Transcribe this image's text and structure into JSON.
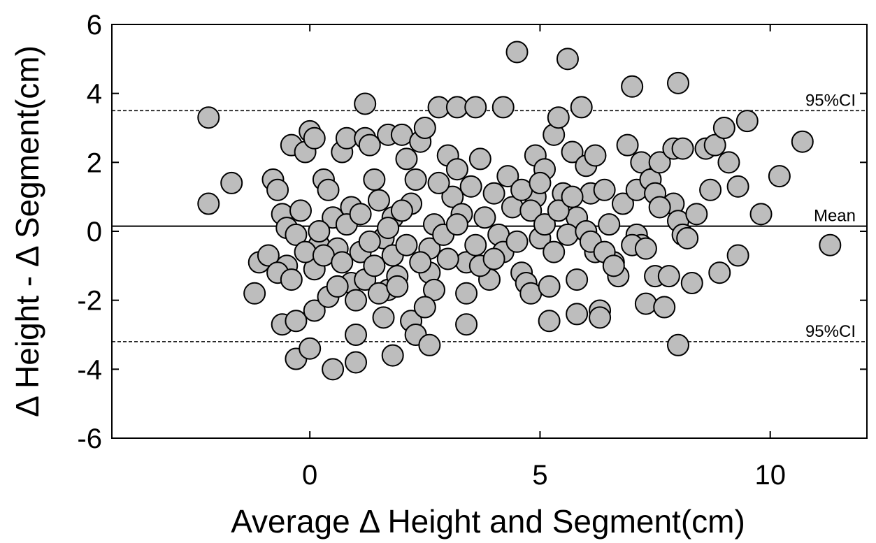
{
  "chart_data": {
    "type": "scatter",
    "xlabel": "Average Δ Height and Segment(cm)",
    "ylabel": "Δ Height - Δ Segment(cm)",
    "xlim": [
      -4.3,
      12.1
    ],
    "ylim": [
      -6,
      6
    ],
    "x_ticks": [
      0,
      5,
      10
    ],
    "y_ticks": [
      -6,
      -4,
      -2,
      0,
      2,
      4,
      6
    ],
    "grid": false,
    "reference_lines": [
      {
        "label": "95%CI",
        "y": 3.5,
        "style": "dashed"
      },
      {
        "label": "Mean",
        "y": 0.15,
        "style": "solid"
      },
      {
        "label": "95%CI",
        "y": -3.2,
        "style": "dashed"
      }
    ],
    "points": [
      [
        -2.2,
        3.3
      ],
      [
        -2.2,
        0.8
      ],
      [
        -1.7,
        1.4
      ],
      [
        -1.1,
        -0.9
      ],
      [
        -1.2,
        -1.8
      ],
      [
        -0.8,
        1.5
      ],
      [
        -0.7,
        1.2
      ],
      [
        -0.6,
        0.5
      ],
      [
        -0.5,
        0.1
      ],
      [
        -0.5,
        -1.0
      ],
      [
        -0.4,
        2.5
      ],
      [
        -0.3,
        -0.1
      ],
      [
        -0.2,
        0.6
      ],
      [
        -0.1,
        2.3
      ],
      [
        -0.6,
        -2.7
      ],
      [
        -0.3,
        -2.6
      ],
      [
        -0.3,
        -3.7
      ],
      [
        0.0,
        2.9
      ],
      [
        0.1,
        2.7
      ],
      [
        0.1,
        -1.1
      ],
      [
        0.2,
        -0.4
      ],
      [
        0.3,
        1.5
      ],
      [
        0.4,
        1.2
      ],
      [
        0.5,
        0.4
      ],
      [
        0.6,
        -0.5
      ],
      [
        0.7,
        2.3
      ],
      [
        0.8,
        2.7
      ],
      [
        0.9,
        0.7
      ],
      [
        0.9,
        -1.5
      ],
      [
        1.0,
        -2.0
      ],
      [
        1.0,
        -3.0
      ],
      [
        0.5,
        -4.0
      ],
      [
        1.0,
        -3.8
      ],
      [
        0.0,
        -3.4
      ],
      [
        0.1,
        -2.3
      ],
      [
        1.2,
        3.7
      ],
      [
        1.2,
        2.7
      ],
      [
        1.3,
        2.5
      ],
      [
        1.4,
        1.5
      ],
      [
        1.5,
        0.9
      ],
      [
        1.6,
        -0.2
      ],
      [
        1.7,
        -1.7
      ],
      [
        1.7,
        2.8
      ],
      [
        1.8,
        0.4
      ],
      [
        1.9,
        -1.3
      ],
      [
        2.0,
        2.8
      ],
      [
        2.1,
        2.1
      ],
      [
        2.2,
        0.8
      ],
      [
        2.2,
        -2.6
      ],
      [
        2.3,
        -3.0
      ],
      [
        2.4,
        2.6
      ],
      [
        2.5,
        3.0
      ],
      [
        2.6,
        -1.2
      ],
      [
        2.6,
        -0.5
      ],
      [
        2.7,
        -1.7
      ],
      [
        2.6,
        -3.3
      ],
      [
        2.5,
        -2.2
      ],
      [
        1.8,
        -3.6
      ],
      [
        1.6,
        -2.5
      ],
      [
        2.8,
        3.6
      ],
      [
        3.0,
        2.2
      ],
      [
        3.1,
        1.0
      ],
      [
        3.2,
        1.8
      ],
      [
        3.3,
        0.5
      ],
      [
        3.4,
        -0.9
      ],
      [
        3.4,
        -2.7
      ],
      [
        3.4,
        -1.8
      ],
      [
        3.2,
        3.6
      ],
      [
        3.6,
        3.6
      ],
      [
        3.7,
        2.1
      ],
      [
        3.8,
        0.4
      ],
      [
        3.9,
        -1.4
      ],
      [
        4.0,
        1.1
      ],
      [
        4.1,
        -0.1
      ],
      [
        4.2,
        -0.6
      ],
      [
        4.2,
        3.6
      ],
      [
        4.4,
        0.7
      ],
      [
        4.5,
        5.2
      ],
      [
        4.6,
        -1.2
      ],
      [
        4.7,
        -1.5
      ],
      [
        4.8,
        -1.8
      ],
      [
        4.9,
        2.2
      ],
      [
        4.9,
        1.0
      ],
      [
        5.0,
        -0.2
      ],
      [
        5.1,
        1.8
      ],
      [
        5.2,
        -1.6
      ],
      [
        5.2,
        -2.6
      ],
      [
        5.3,
        2.8
      ],
      [
        5.4,
        3.3
      ],
      [
        5.5,
        1.1
      ],
      [
        5.6,
        5.0
      ],
      [
        5.7,
        2.3
      ],
      [
        5.8,
        0.4
      ],
      [
        5.8,
        -1.4
      ],
      [
        5.8,
        -2.4
      ],
      [
        5.9,
        3.6
      ],
      [
        6.0,
        1.9
      ],
      [
        6.1,
        1.1
      ],
      [
        6.2,
        -0.6
      ],
      [
        6.3,
        -2.3
      ],
      [
        6.3,
        -2.5
      ],
      [
        6.4,
        1.2
      ],
      [
        6.5,
        0.2
      ],
      [
        6.6,
        -0.9
      ],
      [
        6.7,
        -1.3
      ],
      [
        6.8,
        0.8
      ],
      [
        6.9,
        2.5
      ],
      [
        7.0,
        4.2
      ],
      [
        7.1,
        1.2
      ],
      [
        7.1,
        -0.1
      ],
      [
        7.2,
        -0.4
      ],
      [
        7.2,
        2.0
      ],
      [
        7.3,
        -2.1
      ],
      [
        7.4,
        1.5
      ],
      [
        7.5,
        1.1
      ],
      [
        7.5,
        -1.3
      ],
      [
        7.6,
        2.0
      ],
      [
        7.7,
        -2.2
      ],
      [
        7.8,
        -1.3
      ],
      [
        7.9,
        0.8
      ],
      [
        7.9,
        2.4
      ],
      [
        8.0,
        4.3
      ],
      [
        8.0,
        0.3
      ],
      [
        8.1,
        2.4
      ],
      [
        8.1,
        -0.1
      ],
      [
        8.0,
        -3.3
      ],
      [
        8.2,
        -0.2
      ],
      [
        8.3,
        -1.5
      ],
      [
        8.4,
        0.5
      ],
      [
        8.6,
        2.4
      ],
      [
        8.7,
        1.2
      ],
      [
        8.8,
        2.5
      ],
      [
        8.9,
        -1.2
      ],
      [
        9.0,
        3.0
      ],
      [
        9.1,
        2.0
      ],
      [
        9.3,
        1.3
      ],
      [
        9.3,
        -0.7
      ],
      [
        9.5,
        3.2
      ],
      [
        9.8,
        0.5
      ],
      [
        10.2,
        1.6
      ],
      [
        10.7,
        2.6
      ],
      [
        11.3,
        -0.4
      ],
      [
        -0.9,
        -0.7
      ],
      [
        -0.7,
        -1.2
      ],
      [
        -0.4,
        -1.4
      ],
      [
        -0.1,
        -0.6
      ],
      [
        0.2,
        0.0
      ],
      [
        0.3,
        -0.7
      ],
      [
        0.4,
        -1.9
      ],
      [
        0.6,
        -1.6
      ],
      [
        0.7,
        -0.9
      ],
      [
        0.8,
        0.2
      ],
      [
        1.1,
        0.5
      ],
      [
        1.1,
        -0.6
      ],
      [
        1.2,
        -1.4
      ],
      [
        1.3,
        -0.3
      ],
      [
        1.4,
        -1.0
      ],
      [
        1.5,
        -1.8
      ],
      [
        1.7,
        0.1
      ],
      [
        1.8,
        -0.7
      ],
      [
        1.9,
        -1.6
      ],
      [
        2.0,
        0.6
      ],
      [
        2.1,
        -0.4
      ],
      [
        2.3,
        1.5
      ],
      [
        2.4,
        -0.9
      ],
      [
        2.7,
        0.2
      ],
      [
        2.8,
        1.4
      ],
      [
        2.9,
        -0.1
      ],
      [
        3.0,
        -0.8
      ],
      [
        3.2,
        0.2
      ],
      [
        3.5,
        1.3
      ],
      [
        3.6,
        -0.4
      ],
      [
        3.7,
        -1.0
      ],
      [
        4.0,
        -0.8
      ],
      [
        4.3,
        1.6
      ],
      [
        4.5,
        -0.3
      ],
      [
        4.6,
        1.2
      ],
      [
        4.8,
        0.6
      ],
      [
        5.0,
        1.4
      ],
      [
        5.1,
        0.2
      ],
      [
        5.3,
        -0.6
      ],
      [
        5.4,
        0.6
      ],
      [
        5.6,
        -0.1
      ],
      [
        5.7,
        1.0
      ],
      [
        6.0,
        0.0
      ],
      [
        6.1,
        -0.3
      ],
      [
        6.2,
        2.2
      ],
      [
        6.4,
        -0.6
      ],
      [
        6.6,
        -1.0
      ],
      [
        7.0,
        -0.4
      ],
      [
        7.3,
        -0.5
      ],
      [
        7.6,
        0.7
      ]
    ]
  }
}
